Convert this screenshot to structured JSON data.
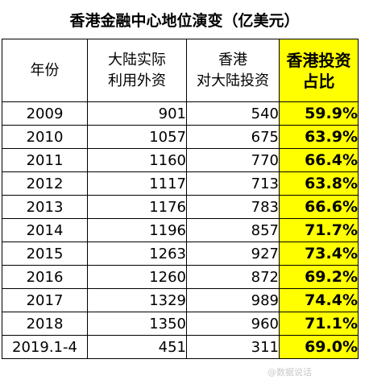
{
  "title": "香港金融中心地位演变（亿美元）",
  "columns": [
    [
      "年份"
    ],
    [
      "大陆实际",
      "利用外资"
    ],
    [
      "香港",
      "对大陆投资"
    ],
    [
      "香港投资",
      "占比"
    ]
  ],
  "rows": [
    {
      "year": "2009",
      "fdi": "901",
      "hk_inv": "540",
      "share": "59.9%"
    },
    {
      "year": "2010",
      "fdi": "1057",
      "hk_inv": "675",
      "share": "63.9%"
    },
    {
      "year": "2011",
      "fdi": "1160",
      "hk_inv": "770",
      "share": "66.4%"
    },
    {
      "year": "2012",
      "fdi": "1117",
      "hk_inv": "713",
      "share": "63.8%"
    },
    {
      "year": "2013",
      "fdi": "1176",
      "hk_inv": "783",
      "share": "66.6%"
    },
    {
      "year": "2014",
      "fdi": "1196",
      "hk_inv": "857",
      "share": "71.7%"
    },
    {
      "year": "2015",
      "fdi": "1263",
      "hk_inv": "927",
      "share": "73.4%"
    },
    {
      "year": "2016",
      "fdi": "1260",
      "hk_inv": "872",
      "share": "69.2%"
    },
    {
      "year": "2017",
      "fdi": "1329",
      "hk_inv": "989",
      "share": "74.4%"
    },
    {
      "year": "2018",
      "fdi": "1350",
      "hk_inv": "960",
      "share": "71.1%"
    },
    {
      "year": "2019.1-4",
      "fdi": "451",
      "hk_inv": "311",
      "share": "69.0%"
    }
  ],
  "highlight_color": "#ffff00",
  "watermark": "@数据说话"
}
